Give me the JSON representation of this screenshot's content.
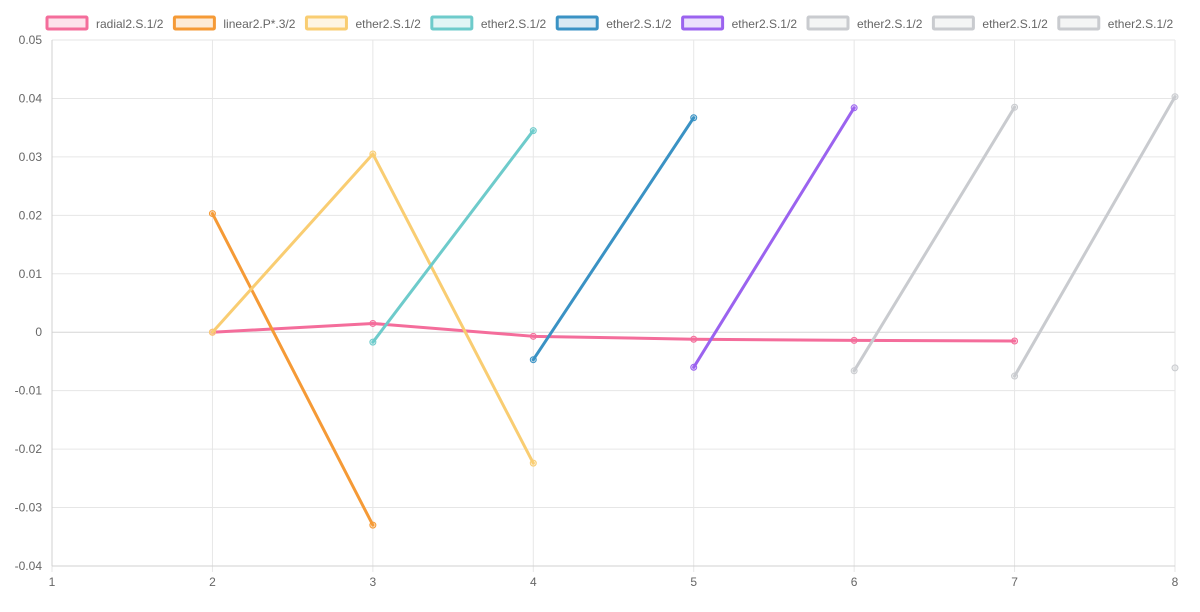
{
  "chart_data": {
    "type": "line",
    "title": "",
    "xlabel": "",
    "ylabel": "",
    "xlim": [
      1,
      8
    ],
    "ylim": [
      -0.04,
      0.05
    ],
    "x_ticks": [
      "1",
      "2",
      "3",
      "4",
      "5",
      "6",
      "7",
      "8"
    ],
    "y_ticks": [
      "0.05",
      "0.04",
      "0.03",
      "0.02",
      "0.01",
      "0",
      "-0.01",
      "-0.02",
      "-0.03",
      "-0.04"
    ],
    "grid": true,
    "legend_position": "top",
    "series": [
      {
        "name": "radial2.S.1/2",
        "color": "#f46d9b",
        "points": [
          [
            2,
            0.0
          ],
          [
            3,
            0.0015
          ],
          [
            4,
            -0.0007
          ],
          [
            5,
            -0.0012
          ],
          [
            6,
            -0.0014
          ],
          [
            7,
            -0.0015
          ]
        ]
      },
      {
        "name": "linear2.P*.3/2",
        "color": "#f59a36",
        "points": [
          [
            2,
            0.0203
          ],
          [
            3,
            -0.033
          ]
        ]
      },
      {
        "name": "ether2.S.1/2",
        "color": "#f9cd72",
        "points": [
          [
            2,
            0.0
          ],
          [
            3,
            0.0305
          ],
          [
            4,
            -0.0224
          ]
        ]
      },
      {
        "name": "ether2.S.1/2",
        "color": "#6ecbcb",
        "points": [
          [
            3,
            -0.0017
          ],
          [
            4,
            0.0345
          ]
        ]
      },
      {
        "name": "ether2.S.1/2",
        "color": "#3a92c4",
        "points": [
          [
            4,
            -0.0047
          ],
          [
            5,
            0.0367
          ]
        ]
      },
      {
        "name": "ether2.S.1/2",
        "color": "#9b63ef",
        "points": [
          [
            5,
            -0.006
          ],
          [
            6,
            0.0384
          ]
        ]
      },
      {
        "name": "ether2.S.1/2",
        "color": "#c9cbcf",
        "points": [
          [
            6,
            -0.0066
          ],
          [
            7,
            0.0385
          ]
        ]
      },
      {
        "name": "ether2.S.1/2",
        "color": "#c9cbcf",
        "points": [
          [
            7,
            -0.0075
          ],
          [
            8,
            0.0403
          ]
        ]
      },
      {
        "name": "ether2.S.1/2",
        "color": "#c9cbcf",
        "points": [
          [
            8,
            -0.0061
          ]
        ]
      }
    ]
  }
}
